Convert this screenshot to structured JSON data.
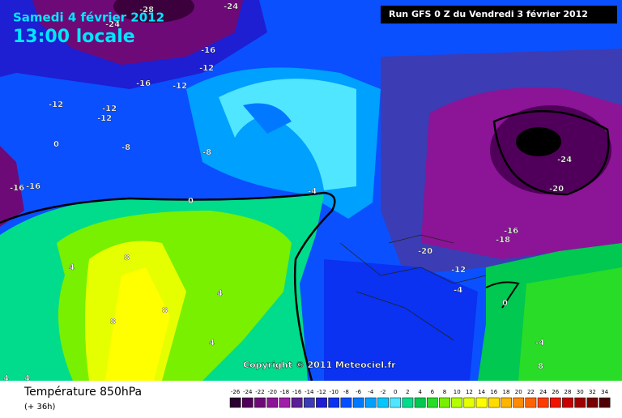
{
  "header": {
    "date": "Samedi 4 février 2012",
    "time": "13:00 locale",
    "run": "Run GFS 0 Z du Vendredi 3 février 2012"
  },
  "copyright": "Copyright © 2011 Meteociel.fr",
  "legend": {
    "title": "Température 850hPa",
    "subtitle": "(+ 36h)",
    "labels": [
      -26,
      -24,
      -22,
      -20,
      -18,
      -16,
      -14,
      -12,
      -10,
      -8,
      -6,
      -4,
      -2,
      0,
      2,
      4,
      6,
      8,
      10,
      12,
      14,
      16,
      18,
      20,
      22,
      24,
      26,
      28,
      30,
      32,
      34
    ],
    "colors": [
      "#2a0030",
      "#50005a",
      "#6e0a78",
      "#8c1496",
      "#a01eaa",
      "#5a1e96",
      "#3c3cb4",
      "#1e1ed2",
      "#0a32f0",
      "#0050ff",
      "#0078ff",
      "#00a0ff",
      "#00c8ff",
      "#50e6ff",
      "#00dc8c",
      "#00c850",
      "#28dc28",
      "#78f000",
      "#b4ff00",
      "#e6ff00",
      "#ffff00",
      "#ffdc00",
      "#ffb400",
      "#ff8c00",
      "#ff6400",
      "#ff3c00",
      "#f01400",
      "#c80000",
      "#a00000",
      "#780000",
      "#500000"
    ]
  },
  "contour_labels": [
    -28,
    -24,
    -24,
    -16,
    -12,
    -16,
    -12,
    -12,
    -12,
    -12,
    -8,
    -8,
    -16,
    -16,
    0,
    -4,
    -24,
    -20,
    -16,
    -18,
    -20,
    -12,
    -4,
    0,
    4,
    8,
    8,
    8,
    4,
    4,
    0,
    -4,
    8,
    4,
    4
  ]
}
